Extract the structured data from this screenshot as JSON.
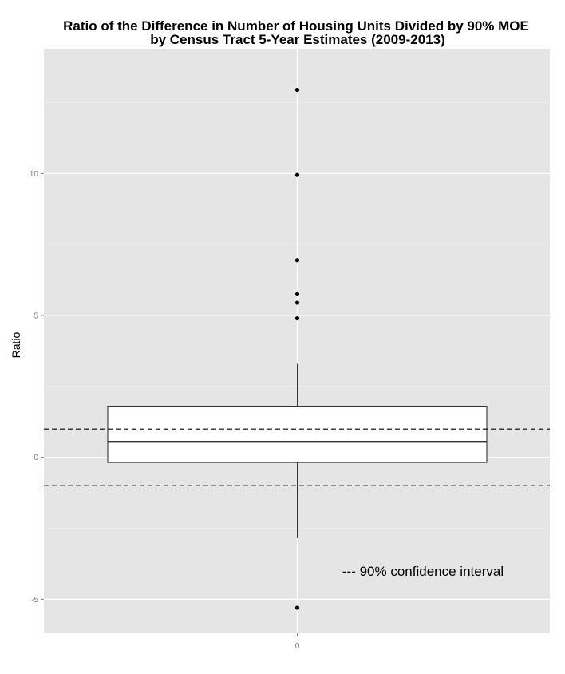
{
  "chart_data": {
    "type": "box",
    "title_line1": "Ratio of the Difference in Number of Housing Units Divided by 90% MOE",
    "title_line2": "by Census Tract 5-Year Estimates (2009-2013)",
    "xlabel": "",
    "ylabel": "Ratio",
    "x_categories": [
      "0"
    ],
    "ylim": [
      -6.2,
      14.4
    ],
    "y_ticks": [
      -5,
      0,
      5,
      10
    ],
    "y_tick_labels": [
      "-5",
      "0",
      "5",
      "10"
    ],
    "grid": true,
    "box": {
      "category": "0",
      "q1": -0.18,
      "median": 0.55,
      "q3": 1.78,
      "whisker_low": -2.85,
      "whisker_high": 3.3
    },
    "outliers": [
      12.95,
      9.95,
      6.95,
      5.75,
      5.45,
      4.9,
      -5.3
    ],
    "reference_lines": [
      {
        "y": 1.0,
        "style": "dashed"
      },
      {
        "y": -1.0,
        "style": "dashed"
      }
    ],
    "annotation": "--- 90% confidence interval",
    "colors": {
      "panel_background": "#e5e5e5",
      "grid_major": "#ffffff",
      "grid_minor": "#f2f2f2",
      "box_fill": "#ffffff",
      "box_stroke": "#333333",
      "median": "#333333",
      "outlier": "#000000",
      "reference_line": "#000000",
      "tick_label": "#7f7f7f"
    }
  }
}
